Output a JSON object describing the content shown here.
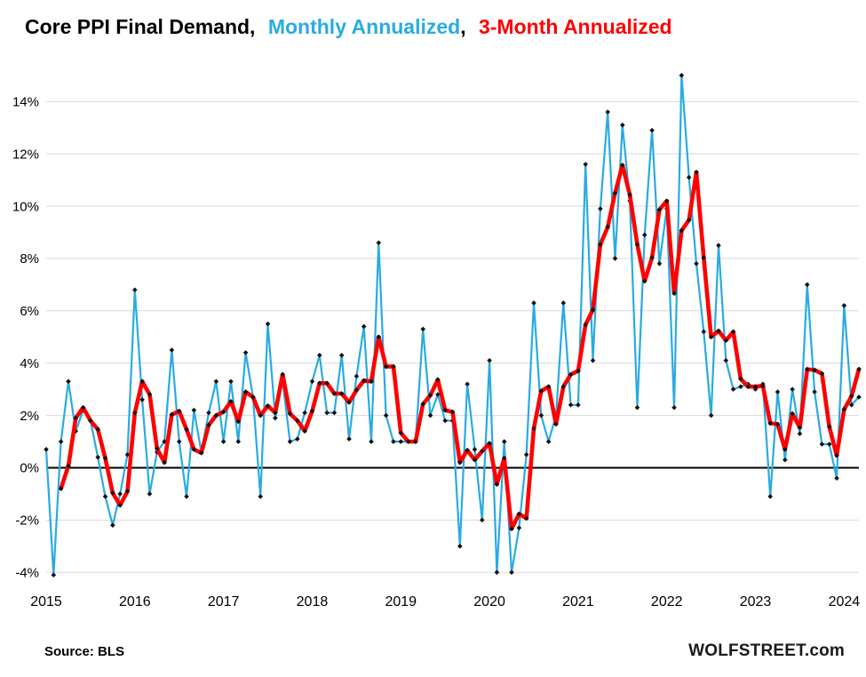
{
  "title": {
    "part1": "Core PPI Final Demand,",
    "part2": "Monthly Annualized",
    "comma": ",",
    "part3": "3-Month Annualized"
  },
  "footer": {
    "source": "Source: BLS",
    "watermark": "WOLFSTREET.com"
  },
  "colors": {
    "monthly_line": "#29ABE2",
    "three_month_line": "#FF0000",
    "marker": "#111111",
    "gridline": "#D9D9D9",
    "zero_line": "#000000",
    "axis_text": "#000000"
  },
  "chart_data": {
    "type": "line",
    "title": "Core PPI Final Demand, Monthly Annualized, 3-Month Annualized",
    "ylabel": "",
    "xlabel": "",
    "x_start": {
      "year": 2015,
      "month": 1
    },
    "x_tick_years": [
      2015,
      2016,
      2017,
      2018,
      2019,
      2020,
      2021,
      2022,
      2023,
      2024
    ],
    "yticks": [
      -4,
      -2,
      0,
      2,
      4,
      6,
      8,
      10,
      12,
      14
    ],
    "ytick_suffix": "%",
    "ylim": [
      -4.4,
      15.3
    ],
    "grid": "horizontal",
    "legend_position": "in-title",
    "series": [
      {
        "name": "Monthly Annualized",
        "color": "#29ABE2",
        "values": [
          0.7,
          -4.1,
          1.0,
          3.3,
          1.4,
          2.2,
          1.8,
          0.4,
          -1.1,
          -2.2,
          -1.0,
          0.5,
          6.8,
          2.6,
          -1.0,
          0.6,
          1.0,
          4.5,
          1.0,
          -1.1,
          2.2,
          0.6,
          2.1,
          3.3,
          1.0,
          3.3,
          1.0,
          4.4,
          2.7,
          -1.1,
          5.5,
          1.9,
          3.3,
          1.0,
          1.1,
          2.1,
          3.3,
          4.3,
          2.1,
          2.1,
          4.3,
          1.1,
          3.5,
          5.4,
          1.0,
          8.6,
          2.0,
          1.0,
          1.0,
          1.0,
          1.0,
          5.3,
          2.0,
          2.8,
          1.8,
          1.8,
          -3.0,
          3.2,
          0.7,
          -2.0,
          4.1,
          -4.0,
          1.0,
          -4.0,
          -2.3,
          0.5,
          6.3,
          2.0,
          1.0,
          2.0,
          6.3,
          2.4,
          2.4,
          11.6,
          4.1,
          9.9,
          13.6,
          8.0,
          13.1,
          10.2,
          2.3,
          8.9,
          12.9,
          7.8,
          9.9,
          2.3,
          15.0,
          11.1,
          7.8,
          5.2,
          2.0,
          8.5,
          4.1,
          3.0,
          3.1,
          3.2,
          3.0,
          3.2,
          -1.1,
          2.9,
          0.3,
          3.0,
          1.3,
          7.0,
          2.9,
          0.9,
          0.9,
          -0.4,
          6.2,
          2.4,
          2.7
        ]
      },
      {
        "name": "3-Month Annualized",
        "color": "#FF0000",
        "derived": "trailing 3-month moving average of the Monthly Annualized series",
        "window": 3
      }
    ]
  }
}
